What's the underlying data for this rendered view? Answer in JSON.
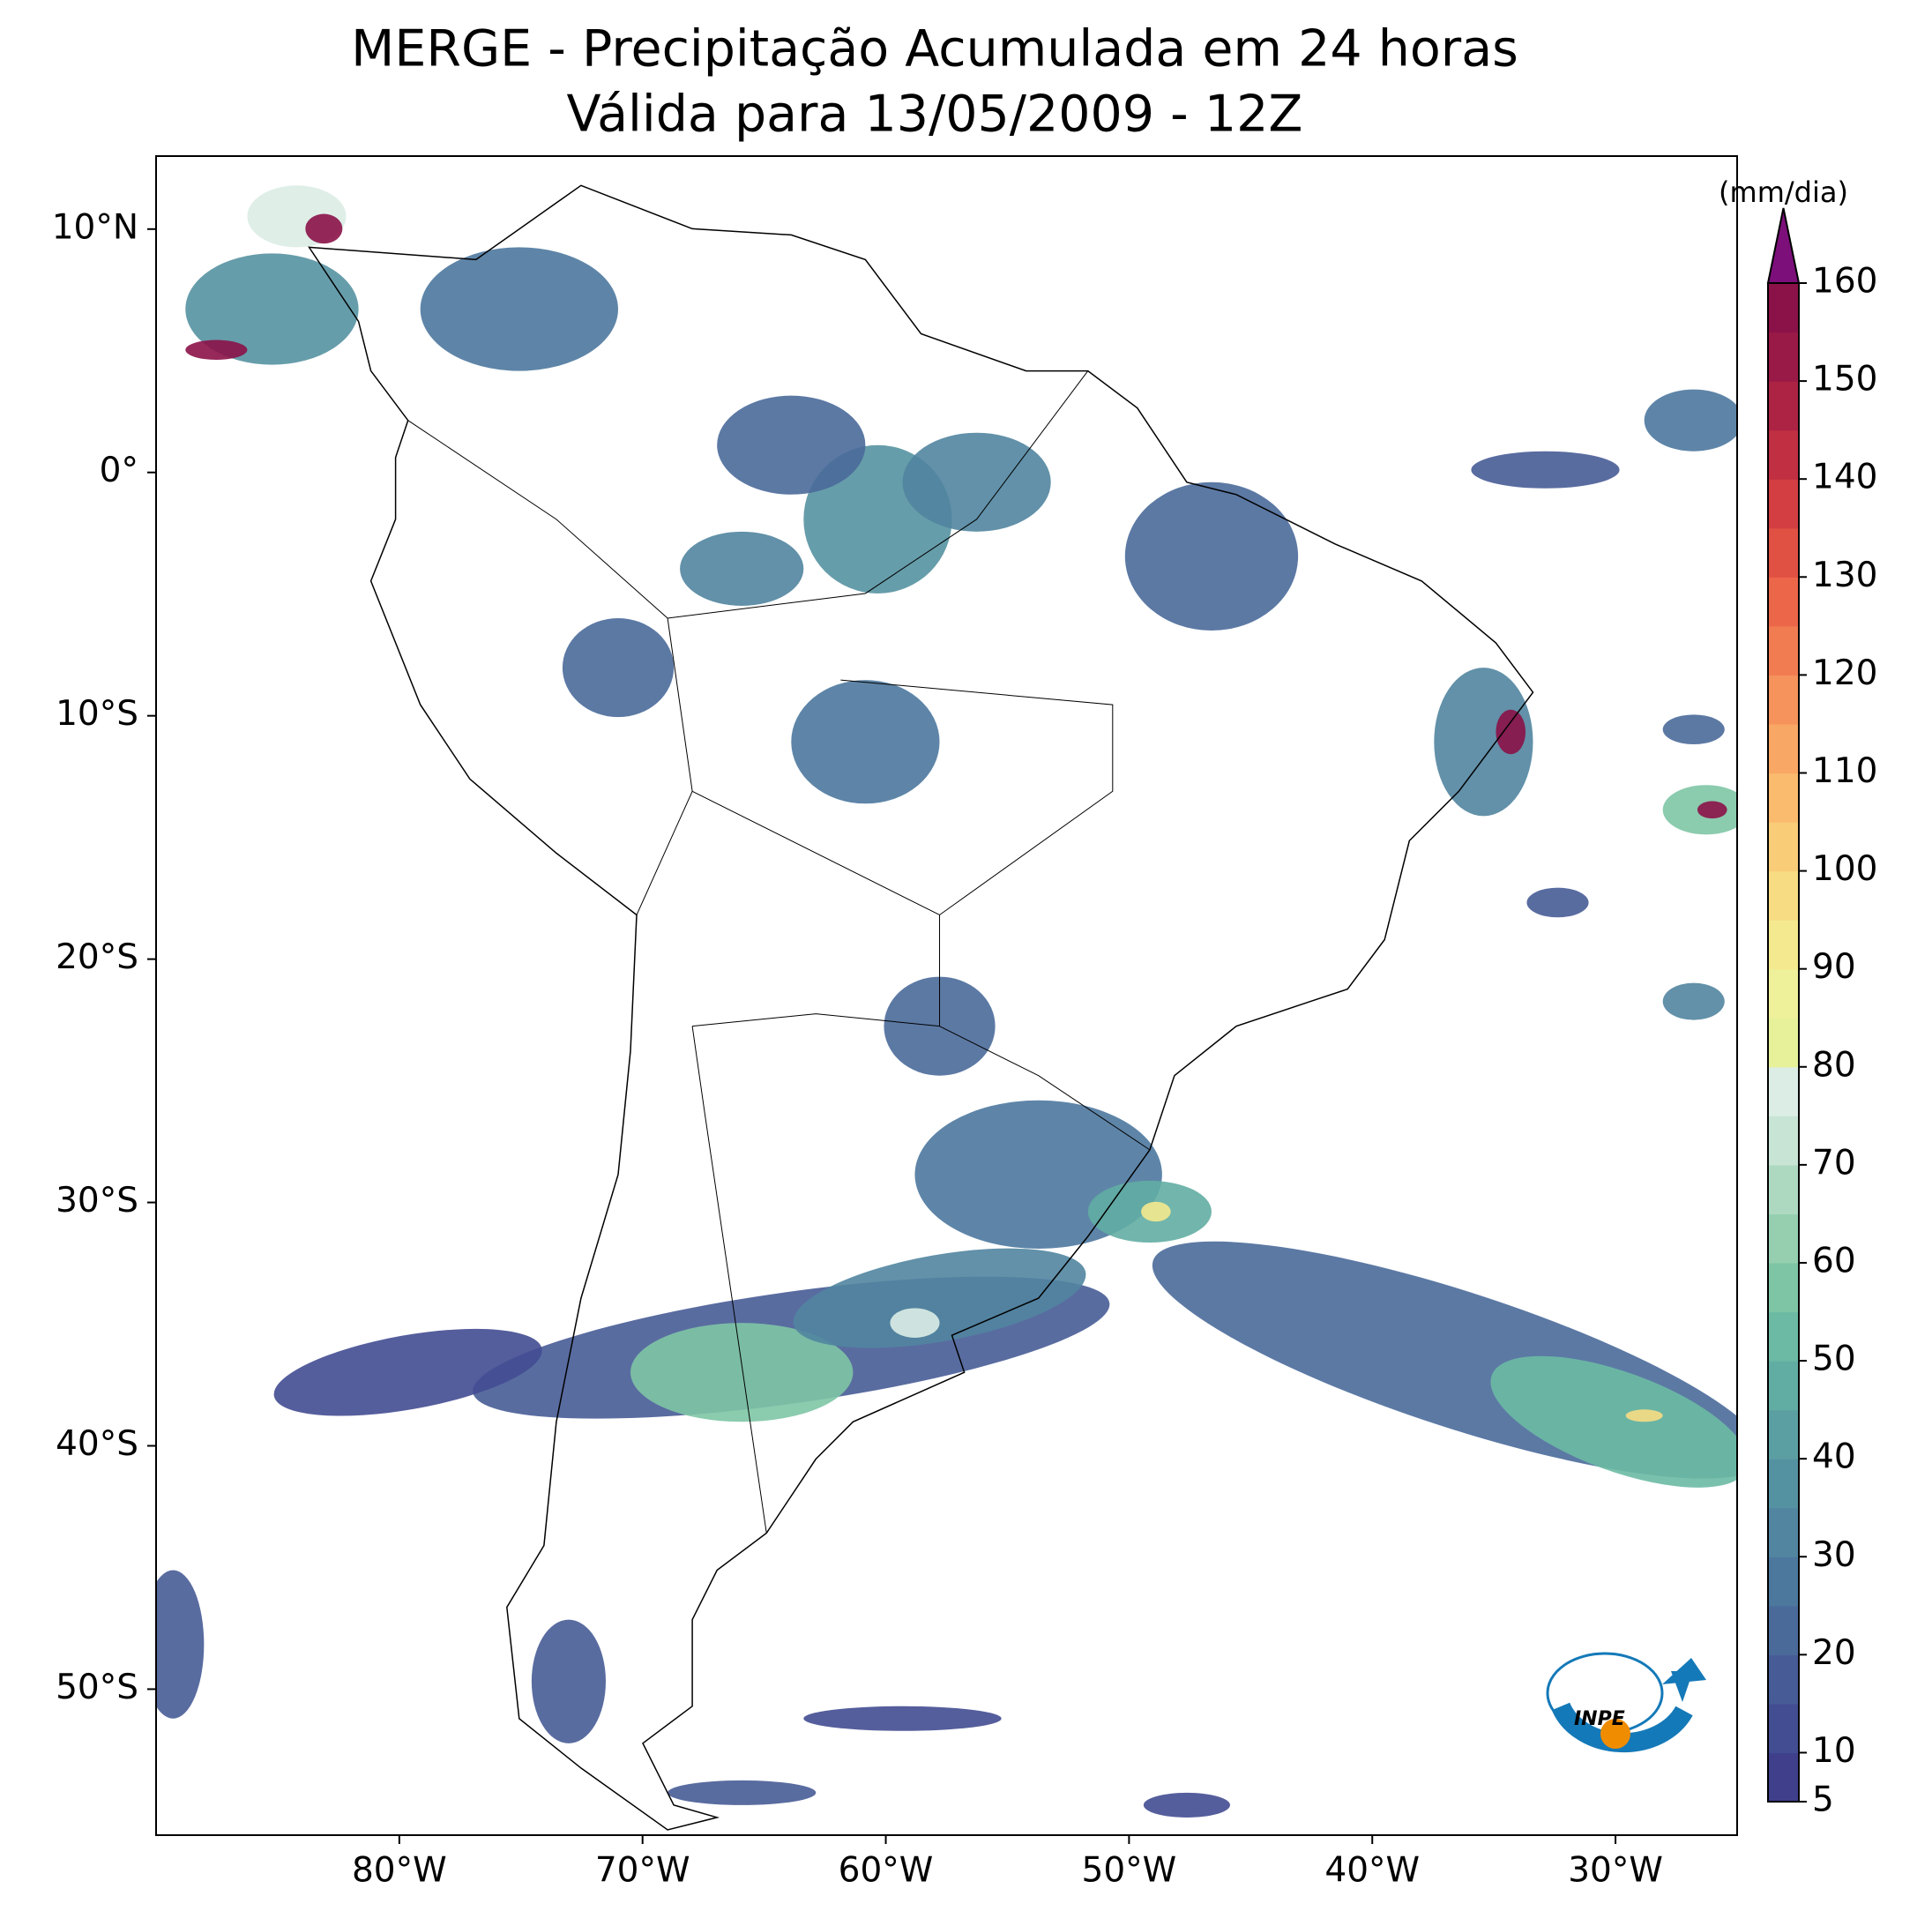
{
  "title": "MERGE - Precipitação Acumulada em 24 horas",
  "subtitle": "Válida para 13/05/2009 - 12Z",
  "map": {
    "xlim": [
      -90,
      -25
    ],
    "ylim": [
      -56,
      13
    ],
    "xticks": [
      {
        "value": -80,
        "label": "80°W"
      },
      {
        "value": -70,
        "label": "70°W"
      },
      {
        "value": -60,
        "label": "60°W"
      },
      {
        "value": -50,
        "label": "50°W"
      },
      {
        "value": -40,
        "label": "40°W"
      },
      {
        "value": -30,
        "label": "30°W"
      }
    ],
    "yticks": [
      {
        "value": 10,
        "label": "10°N"
      },
      {
        "value": 0,
        "label": "0°"
      },
      {
        "value": -10,
        "label": "10°S"
      },
      {
        "value": -20,
        "label": "20°S"
      },
      {
        "value": -30,
        "label": "30°S"
      },
      {
        "value": -40,
        "label": "40°S"
      },
      {
        "value": -50,
        "label": "50°S"
      }
    ]
  },
  "colorbar": {
    "label": "(mm/dia)",
    "lim": [
      5,
      160
    ],
    "ticks": [
      5,
      10,
      20,
      30,
      40,
      50,
      60,
      70,
      80,
      90,
      100,
      110,
      120,
      130,
      140,
      150,
      160
    ],
    "colors": [
      "#3f3f8c",
      "#434d91",
      "#475c96",
      "#4a6a9a",
      "#4d789e",
      "#5185a0",
      "#5592a1",
      "#5b9fa2",
      "#62ada3",
      "#6cbaa4",
      "#7ec5a5",
      "#95cfb0",
      "#aed9c1",
      "#c7e4d4",
      "#dcede6",
      "#e6f199",
      "#eef09a",
      "#f4e98e",
      "#f7dc83",
      "#f9cc78",
      "#fabb6e",
      "#f9a765",
      "#f6925b",
      "#f27c52",
      "#ec664a",
      "#e05043",
      "#d23e42",
      "#c12f43",
      "#ad2344",
      "#9a1a47",
      "#8b1248"
    ],
    "extend_color": "#7c0f7a"
  },
  "logo": {
    "text": "INPE"
  }
}
